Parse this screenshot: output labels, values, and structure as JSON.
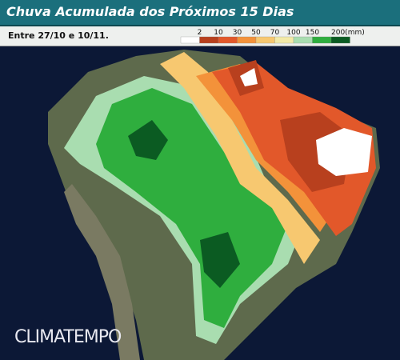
{
  "header": {
    "title": "Chuva Acumulada dos Próximos 15 Dias",
    "subtitle": "Entre 27/10 e 10/11."
  },
  "legend": {
    "items": [
      {
        "label": "2",
        "color": "#ffffff"
      },
      {
        "label": "10",
        "color": "#b8401e"
      },
      {
        "label": "30",
        "color": "#e2582a"
      },
      {
        "label": "50",
        "color": "#f3923a"
      },
      {
        "label": "70",
        "color": "#f7c870"
      },
      {
        "label": "100",
        "color": "#f3eaa8"
      },
      {
        "label": "150",
        "color": "#a9ddb0"
      },
      {
        "label": "200(mm)",
        "color": "#2fae3e"
      }
    ],
    "last_color": "#0b5b22"
  },
  "watermark": "CLIMATEMPO"
}
